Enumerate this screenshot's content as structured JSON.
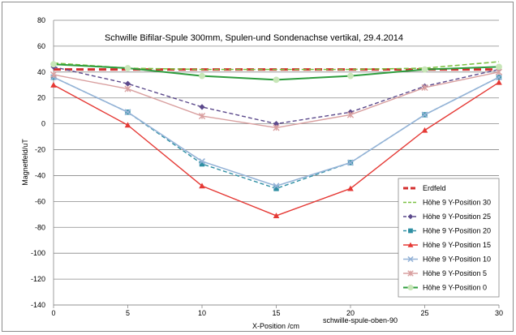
{
  "chart_data": {
    "type": "line",
    "title": "Schwille Bifilar-Spule 300mm,  Spulen-und Sondenachse vertikal, 29.4.2014",
    "xlabel": "X-Position /cm",
    "ylabel": "Magnetfeld/uT",
    "annotation": "schwille-spule-oben-90",
    "xlim": [
      0,
      30
    ],
    "ylim": [
      -140,
      80
    ],
    "x_ticks": [
      0,
      5,
      10,
      15,
      20,
      25,
      30
    ],
    "y_ticks": [
      -140,
      -120,
      -100,
      -80,
      -60,
      -40,
      -20,
      0,
      20,
      40,
      60,
      80
    ],
    "grid": "horizontal",
    "legend_position": "bottom-right",
    "x": [
      0,
      5,
      10,
      15,
      20,
      25,
      30
    ],
    "series": [
      {
        "name": "Erdfeld",
        "color": "#d32f2f",
        "dash": "9,5",
        "width": 3,
        "marker": "none",
        "values": [
          42,
          42,
          42,
          42,
          42,
          42,
          42
        ]
      },
      {
        "name": "Höhe 9 Y-Position 30",
        "color": "#7cc142",
        "dash": "6,3",
        "width": 1.6,
        "marker": "none",
        "values": [
          47,
          43,
          42,
          42,
          42,
          43,
          48
        ]
      },
      {
        "name": "Höhe 9 Y-Position 25",
        "color": "#5c4a8c",
        "dash": "5,3",
        "width": 1.4,
        "marker": "diamond",
        "values": [
          44,
          31,
          13,
          0,
          9,
          29,
          42
        ]
      },
      {
        "name": "Höhe 9 Y-Position 20",
        "color": "#2e8fa3",
        "dash": "5,3",
        "width": 1.4,
        "marker": "square",
        "values": [
          36,
          9,
          -31,
          -50,
          -30,
          7,
          36
        ]
      },
      {
        "name": "Höhe 9 Y-Position 15",
        "color": "#e53935",
        "dash": "",
        "width": 1.4,
        "marker": "triangle",
        "values": [
          30,
          -1,
          -48,
          -71,
          -50,
          -5,
          32
        ]
      },
      {
        "name": "Höhe 9 Y-Position 10",
        "color": "#95b3d7",
        "dash": "",
        "width": 1.6,
        "marker": "x",
        "values": [
          36,
          9,
          -29,
          -48,
          -30,
          7,
          36
        ]
      },
      {
        "name": "Höhe 9 Y-Position 5",
        "color": "#d9a0a0",
        "dash": "",
        "width": 1.4,
        "marker": "star",
        "values": [
          38,
          27,
          6,
          -3,
          7,
          28,
          40
        ]
      },
      {
        "name": "Höhe 9 Y-Position 0",
        "color": "#2e9d3d",
        "dash": "",
        "width": 2,
        "marker": "circle",
        "values": [
          46,
          43,
          37,
          34,
          37,
          42,
          44
        ]
      }
    ]
  }
}
